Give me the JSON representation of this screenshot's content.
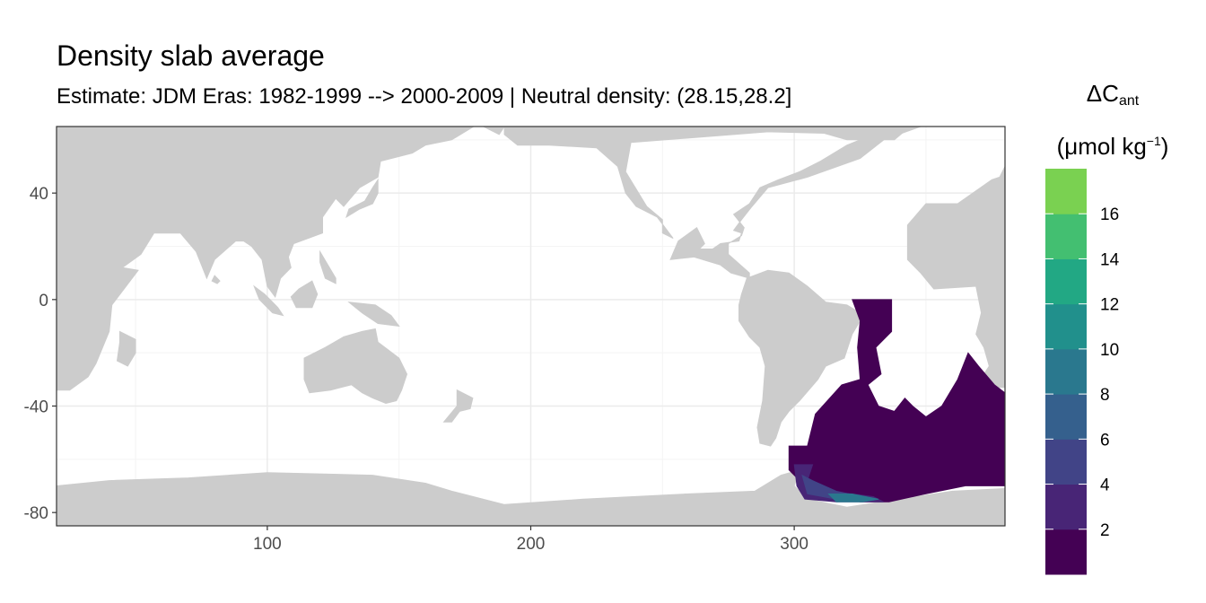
{
  "title": "Density slab average",
  "subtitle": "Estimate: JDM Eras: 1982-1999 --> 2000-2009 | Neutral density: (28.15,28.2]",
  "legend": {
    "title_symbol": "ΔC",
    "title_sub": "ant",
    "unit_open": "(μmol kg",
    "unit_sup": "−1",
    "unit_close": ")"
  },
  "colors": {
    "land": "#cccccc",
    "ocean": "#ffffff",
    "grid": "#ebebeb",
    "frame": "#333333",
    "bins": [
      "#440154",
      "#482576",
      "#414487",
      "#35608d",
      "#2a788e",
      "#21908c",
      "#22a884",
      "#43bf71",
      "#7ad151",
      "#bddf26",
      "#fde725"
    ]
  },
  "chart_data": {
    "type": "heatmap",
    "title": "Density slab average",
    "subtitle": "Estimate: JDM Eras: 1982-1999 --> 2000-2009 | Neutral density: (28.15,28.2]",
    "xlim": [
      20,
      380
    ],
    "ylim": [
      -85,
      65
    ],
    "x_ticks": [
      100,
      200,
      300
    ],
    "y_ticks": [
      40,
      0,
      -40,
      -80
    ],
    "x_tick_labels": [
      "100",
      "200",
      "300"
    ],
    "y_tick_labels": [
      "40",
      "0",
      "-40",
      "-80"
    ],
    "grid": true,
    "legend_position": "right",
    "colorbar_breaks": [
      2,
      4,
      6,
      8,
      10,
      12,
      14,
      16
    ],
    "colorbar_labels": [
      "2",
      "4",
      "6",
      "8",
      "10",
      "12",
      "14",
      "16"
    ],
    "colorbar_range": [
      0,
      18
    ],
    "data_regions": [
      {
        "value": 1,
        "polygon": [
          [
            322,
            0
          ],
          [
            337,
            0
          ],
          [
            337,
            -12
          ],
          [
            331,
            -18
          ],
          [
            333,
            -28
          ],
          [
            328,
            -32
          ],
          [
            332,
            -40
          ],
          [
            338,
            -42
          ],
          [
            342,
            -37
          ],
          [
            345,
            -40
          ],
          [
            350,
            -44
          ],
          [
            356,
            -40
          ],
          [
            362,
            -30
          ],
          [
            366,
            -20
          ],
          [
            370,
            -25
          ],
          [
            376,
            -32
          ],
          [
            380,
            -35
          ],
          [
            380,
            -70
          ],
          [
            365,
            -70
          ],
          [
            350,
            -73
          ],
          [
            336,
            -76
          ],
          [
            325,
            -76
          ],
          [
            316,
            -74
          ],
          [
            306,
            -74
          ],
          [
            302,
            -68
          ],
          [
            298,
            -64
          ],
          [
            298,
            -55
          ],
          [
            305,
            -55
          ],
          [
            308,
            -43
          ],
          [
            318,
            -32
          ],
          [
            325,
            -30
          ],
          [
            324,
            -18
          ],
          [
            325,
            -8
          ]
        ]
      },
      {
        "value": 3,
        "polygon": [
          [
            300,
            -62
          ],
          [
            307,
            -62
          ],
          [
            305,
            -68
          ],
          [
            312,
            -72
          ],
          [
            322,
            -73
          ],
          [
            330,
            -74
          ],
          [
            334,
            -76
          ],
          [
            316,
            -76
          ],
          [
            304,
            -75
          ],
          [
            301,
            -70
          ]
        ]
      },
      {
        "value": 5,
        "polygon": [
          [
            303,
            -66
          ],
          [
            307,
            -68
          ],
          [
            316,
            -72
          ],
          [
            326,
            -74
          ],
          [
            330,
            -75
          ],
          [
            316,
            -75
          ],
          [
            305,
            -73
          ]
        ]
      },
      {
        "value": 9,
        "polygon": [
          [
            313,
            -73
          ],
          [
            322,
            -73
          ],
          [
            332,
            -75
          ],
          [
            326,
            -76
          ],
          [
            316,
            -76
          ]
        ]
      }
    ],
    "land_masses": [
      {
        "name": "Eurasia-Africa",
        "polygon": [
          [
            20,
            65
          ],
          [
            190,
            65
          ],
          [
            188,
            62
          ],
          [
            180,
            66
          ],
          [
            170,
            60
          ],
          [
            160,
            58
          ],
          [
            155,
            55
          ],
          [
            143,
            52
          ],
          [
            142,
            46
          ],
          [
            135,
            42
          ],
          [
            129,
            35
          ],
          [
            126,
            38
          ],
          [
            121,
            31
          ],
          [
            121,
            25
          ],
          [
            110,
            21
          ],
          [
            108,
            16
          ],
          [
            109,
            12
          ],
          [
            105,
            8
          ],
          [
            103,
            1
          ],
          [
            100,
            5
          ],
          [
            98,
            15
          ],
          [
            94,
            20
          ],
          [
            91,
            22
          ],
          [
            88,
            22
          ],
          [
            80,
            15
          ],
          [
            77,
            8
          ],
          [
            73,
            18
          ],
          [
            67,
            25
          ],
          [
            57,
            25
          ],
          [
            52,
            17
          ],
          [
            45,
            12
          ],
          [
            51,
            11
          ],
          [
            41,
            -2
          ],
          [
            40,
            -12
          ],
          [
            35,
            -24
          ],
          [
            32,
            -29
          ],
          [
            25,
            -34
          ],
          [
            20,
            -34
          ]
        ]
      },
      {
        "name": "Europe-Africa-east",
        "polygon": [
          [
            350,
            65
          ],
          [
            380,
            65
          ],
          [
            380,
            50
          ],
          [
            378,
            46
          ],
          [
            375,
            45
          ],
          [
            362,
            36
          ],
          [
            350,
            36
          ],
          [
            343,
            28
          ],
          [
            343,
            15
          ],
          [
            348,
            10
          ],
          [
            353,
            4
          ],
          [
            369,
            5
          ],
          [
            371,
            -5
          ],
          [
            369,
            -13
          ],
          [
            372,
            -18
          ],
          [
            374,
            -25
          ],
          [
            372,
            -28
          ],
          [
            370,
            -33
          ],
          [
            380,
            -33
          ],
          [
            380,
            65
          ]
        ]
      },
      {
        "name": "North America",
        "polygon": [
          [
            190,
            65
          ],
          [
            348,
            65
          ],
          [
            334,
            60
          ],
          [
            325,
            53
          ],
          [
            305,
            46
          ],
          [
            290,
            42
          ],
          [
            284,
            35
          ],
          [
            280,
            30
          ],
          [
            277,
            26
          ],
          [
            280,
            25
          ],
          [
            279,
            22
          ],
          [
            272,
            21
          ],
          [
            269,
            19
          ],
          [
            264,
            19
          ],
          [
            266,
            21
          ],
          [
            263,
            27
          ],
          [
            256,
            22
          ],
          [
            253,
            15
          ],
          [
            262,
            16
          ],
          [
            272,
            13
          ],
          [
            276,
            10
          ],
          [
            283,
            8
          ],
          [
            283,
            10
          ],
          [
            275,
            17
          ],
          [
            275,
            21
          ],
          [
            280,
            24
          ],
          [
            281,
            27
          ],
          [
            277,
            32
          ],
          [
            283,
            36
          ],
          [
            287,
            42
          ],
          [
            294,
            45
          ],
          [
            302,
            48
          ],
          [
            310,
            52
          ],
          [
            320,
            58
          ],
          [
            330,
            62
          ],
          [
            290,
            63
          ],
          [
            238,
            59
          ],
          [
            236,
            48
          ],
          [
            244,
            35
          ],
          [
            250,
            30
          ],
          [
            250,
            25
          ],
          [
            254,
            23
          ],
          [
            248,
            31
          ],
          [
            240,
            35
          ],
          [
            236,
            40
          ],
          [
            233,
            50
          ],
          [
            225,
            57
          ],
          [
            207,
            58
          ],
          [
            195,
            58
          ],
          [
            190,
            62
          ]
        ]
      },
      {
        "name": "South America",
        "polygon": [
          [
            282,
            8
          ],
          [
            290,
            11
          ],
          [
            298,
            10
          ],
          [
            305,
            5
          ],
          [
            312,
            -1
          ],
          [
            320,
            -2
          ],
          [
            325,
            -5
          ],
          [
            325,
            -8
          ],
          [
            322,
            -13
          ],
          [
            319,
            -22
          ],
          [
            312,
            -25
          ],
          [
            309,
            -30
          ],
          [
            302,
            -38
          ],
          [
            298,
            -42
          ],
          [
            295,
            -46
          ],
          [
            293,
            -52
          ],
          [
            291,
            -55
          ],
          [
            287,
            -54
          ],
          [
            286,
            -48
          ],
          [
            288,
            -38
          ],
          [
            289,
            -25
          ],
          [
            287,
            -18
          ],
          [
            283,
            -14
          ],
          [
            279,
            -8
          ],
          [
            279,
            -2
          ],
          [
            280,
            2
          ]
        ]
      },
      {
        "name": "Australia",
        "polygon": [
          [
            114,
            -22
          ],
          [
            122,
            -18
          ],
          [
            129,
            -14
          ],
          [
            136,
            -12
          ],
          [
            141,
            -11
          ],
          [
            142,
            -16
          ],
          [
            146,
            -19
          ],
          [
            150,
            -22
          ],
          [
            153,
            -28
          ],
          [
            151,
            -34
          ],
          [
            149,
            -38
          ],
          [
            145,
            -39
          ],
          [
            140,
            -37
          ],
          [
            136,
            -35
          ],
          [
            132,
            -32
          ],
          [
            124,
            -34
          ],
          [
            116,
            -35
          ],
          [
            114,
            -30
          ]
        ]
      },
      {
        "name": "Borneo",
        "polygon": [
          [
            109,
            1
          ],
          [
            112,
            4
          ],
          [
            117,
            7
          ],
          [
            119,
            2
          ],
          [
            117,
            -3
          ],
          [
            111,
            -3
          ]
        ]
      },
      {
        "name": "Sumatra",
        "polygon": [
          [
            95,
            5
          ],
          [
            99,
            2
          ],
          [
            104,
            -3
          ],
          [
            106,
            -6
          ],
          [
            102,
            -5
          ],
          [
            97,
            0
          ]
        ]
      },
      {
        "name": "New Guinea",
        "polygon": [
          [
            131,
            -1
          ],
          [
            141,
            -2
          ],
          [
            147,
            -6
          ],
          [
            150,
            -10
          ],
          [
            142,
            -9
          ],
          [
            136,
            -5
          ]
        ]
      },
      {
        "name": "Madagascar",
        "polygon": [
          [
            44,
            -12
          ],
          [
            50,
            -15
          ],
          [
            50,
            -20
          ],
          [
            47,
            -25
          ],
          [
            43,
            -23
          ],
          [
            44,
            -16
          ]
        ]
      },
      {
        "name": "Japan",
        "polygon": [
          [
            130,
            31
          ],
          [
            135,
            34
          ],
          [
            140,
            36
          ],
          [
            142,
            40
          ],
          [
            142,
            45
          ],
          [
            140,
            42
          ],
          [
            137,
            37
          ],
          [
            131,
            34
          ]
        ]
      },
      {
        "name": "Philippines",
        "polygon": [
          [
            120,
            18
          ],
          [
            123,
            13
          ],
          [
            126,
            8
          ],
          [
            126,
            6
          ],
          [
            122,
            8
          ],
          [
            120,
            14
          ]
        ]
      },
      {
        "name": "New Zealand",
        "polygon": [
          [
            172,
            -34
          ],
          [
            178,
            -37
          ],
          [
            177,
            -41
          ],
          [
            173,
            -42
          ],
          [
            170,
            -46
          ],
          [
            167,
            -46
          ],
          [
            172,
            -40
          ]
        ]
      },
      {
        "name": "Greenland",
        "polygon": [
          [
            300,
            65
          ],
          [
            344,
            65
          ],
          [
            338,
            60
          ],
          [
            320,
            60
          ],
          [
            306,
            64
          ]
        ]
      },
      {
        "name": "Sri Lanka",
        "polygon": [
          [
            80,
            9
          ],
          [
            82,
            7
          ],
          [
            81,
            6
          ],
          [
            79,
            7
          ]
        ]
      },
      {
        "name": "Antarctica",
        "polygon": [
          [
            20,
            -70
          ],
          [
            40,
            -68
          ],
          [
            70,
            -67
          ],
          [
            100,
            -65
          ],
          [
            140,
            -66
          ],
          [
            160,
            -69
          ],
          [
            170,
            -72
          ],
          [
            190,
            -77
          ],
          [
            220,
            -75
          ],
          [
            260,
            -73
          ],
          [
            285,
            -72
          ],
          [
            295,
            -66
          ],
          [
            302,
            -64
          ],
          [
            300,
            -70
          ],
          [
            305,
            -75
          ],
          [
            320,
            -78
          ],
          [
            340,
            -75
          ],
          [
            360,
            -72
          ],
          [
            380,
            -71
          ],
          [
            380,
            -85
          ],
          [
            20,
            -85
          ]
        ]
      }
    ]
  }
}
